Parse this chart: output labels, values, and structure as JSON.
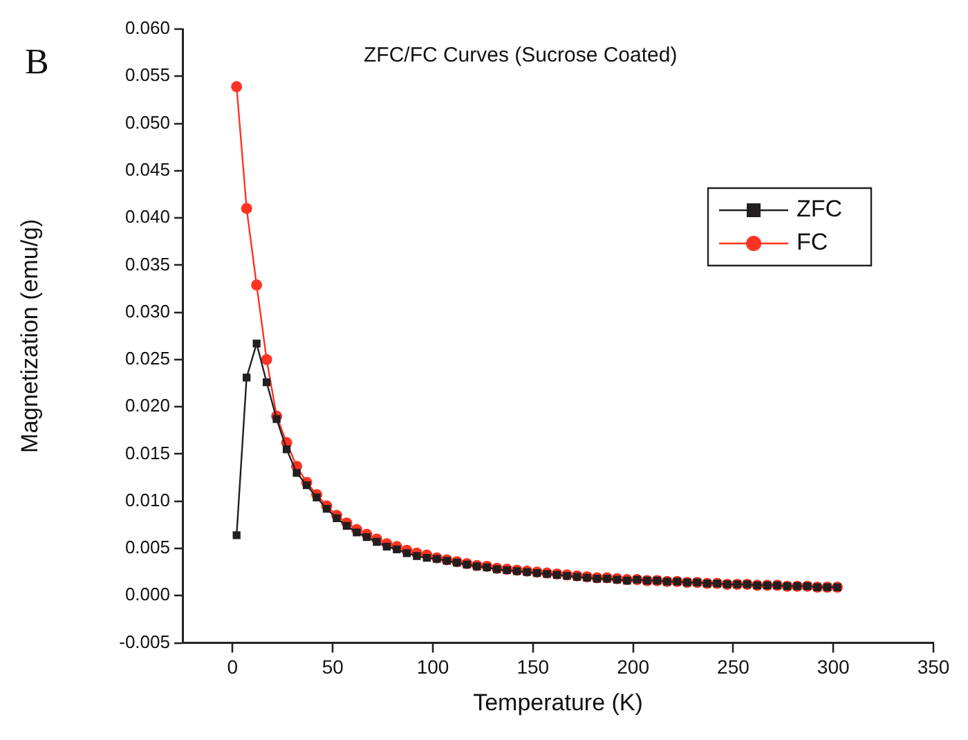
{
  "chart_data": {
    "type": "line",
    "title": "ZFC/FC Curves (Sucrose Coated)",
    "xlabel": "Temperature (K)",
    "ylabel": "Magnetization (emu/g)",
    "annotations": [
      "B"
    ],
    "x": [
      2,
      7,
      12,
      17,
      22,
      27,
      32,
      37,
      42,
      47,
      52,
      57,
      62,
      67,
      72,
      77,
      82,
      87,
      92,
      97,
      102,
      107,
      112,
      117,
      122,
      127,
      132,
      137,
      142,
      147,
      152,
      157,
      162,
      167,
      172,
      177,
      182,
      187,
      192,
      197,
      202,
      207,
      212,
      217,
      222,
      227,
      232,
      237,
      242,
      247,
      252,
      257,
      262,
      267,
      272,
      277,
      282,
      287,
      292,
      297,
      302
    ],
    "series": [
      {
        "name": "ZFC",
        "color": "#231f20",
        "marker": "square",
        "values": [
          0.0064,
          0.0231,
          0.0267,
          0.0226,
          0.0187,
          0.0155,
          0.013,
          0.0117,
          0.0104,
          0.0092,
          0.0082,
          0.0074,
          0.0067,
          0.0062,
          0.0057,
          0.0052,
          0.0049,
          0.0045,
          0.0042,
          0.004,
          0.0039,
          0.0037,
          0.0035,
          0.0033,
          0.0031,
          0.003,
          0.0028,
          0.0027,
          0.0026,
          0.0025,
          0.0024,
          0.0023,
          0.0022,
          0.0021,
          0.002,
          0.0019,
          0.0018,
          0.0018,
          0.0017,
          0.0016,
          0.0017,
          0.0016,
          0.0016,
          0.0015,
          0.0015,
          0.0014,
          0.0014,
          0.0013,
          0.0013,
          0.0012,
          0.0012,
          0.0012,
          0.0011,
          0.0011,
          0.0011,
          0.001,
          0.001,
          0.001,
          0.0009,
          0.0009,
          0.0009
        ]
      },
      {
        "name": "FC",
        "color": "#ff3322",
        "marker": "circle",
        "values": [
          0.0539,
          0.041,
          0.0329,
          0.025,
          0.019,
          0.0162,
          0.0137,
          0.012,
          0.0107,
          0.0095,
          0.0085,
          0.0077,
          0.007,
          0.0065,
          0.006,
          0.0055,
          0.0052,
          0.0048,
          0.0045,
          0.0043,
          0.004,
          0.0038,
          0.0036,
          0.0034,
          0.0032,
          0.0031,
          0.0029,
          0.0028,
          0.0027,
          0.0026,
          0.0025,
          0.0024,
          0.0023,
          0.0022,
          0.0021,
          0.002,
          0.0019,
          0.0019,
          0.0018,
          0.0017,
          0.0017,
          0.0016,
          0.0016,
          0.0015,
          0.0015,
          0.0014,
          0.0014,
          0.0013,
          0.0013,
          0.0012,
          0.0012,
          0.0012,
          0.0011,
          0.0011,
          0.0011,
          0.001,
          0.001,
          0.001,
          0.0009,
          0.0009,
          0.0009
        ]
      }
    ],
    "xlim": [
      -25,
      350
    ],
    "xticks": [
      0,
      50,
      100,
      150,
      200,
      250,
      300,
      350
    ],
    "ylim": [
      -0.005,
      0.06
    ],
    "yticks": [
      {
        "value": -0.005,
        "label": "-0.005"
      },
      {
        "value": 0,
        "label": "0.000"
      },
      {
        "value": 0.005,
        "label": "0.005"
      },
      {
        "value": 0.01,
        "label": "0.010"
      },
      {
        "value": 0.015,
        "label": "0.015"
      },
      {
        "value": 0.02,
        "label": "0.020"
      },
      {
        "value": 0.025,
        "label": "0.025"
      },
      {
        "value": 0.03,
        "label": "0.030"
      },
      {
        "value": 0.035,
        "label": "0.035"
      },
      {
        "value": 0.04,
        "label": "0.040"
      },
      {
        "value": 0.045,
        "label": "0.045"
      },
      {
        "value": 0.05,
        "label": "0.050"
      },
      {
        "value": 0.055,
        "label": "0.055"
      },
      {
        "value": 0.06,
        "label": "0.060"
      }
    ],
    "grid": false,
    "legend": "top right",
    "line_style": "solid"
  }
}
